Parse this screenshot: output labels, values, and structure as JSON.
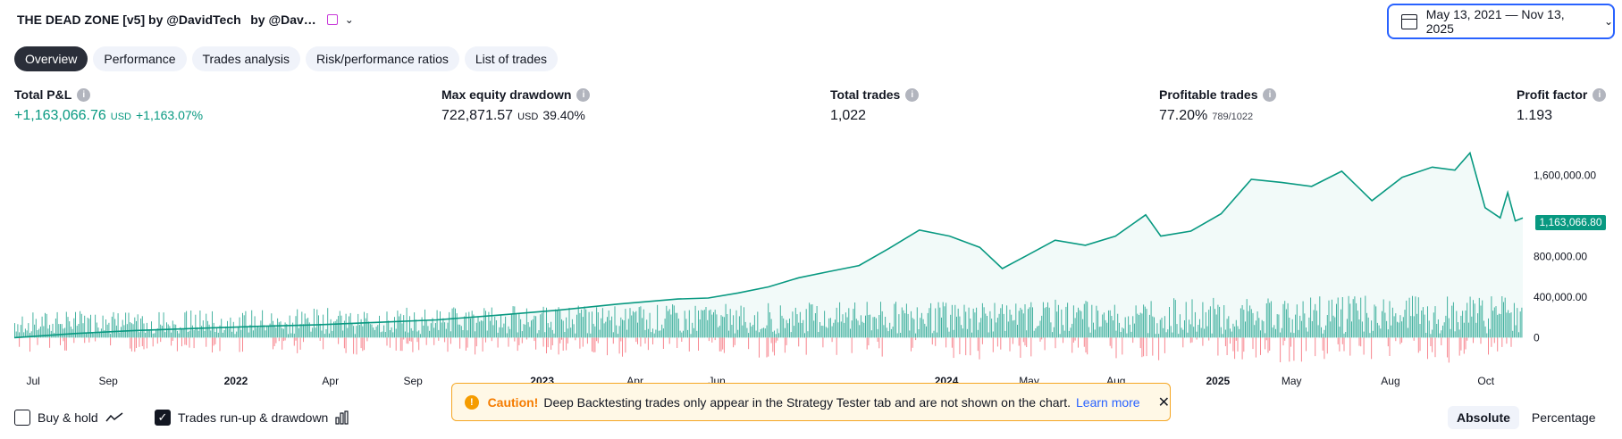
{
  "header": {
    "title": "THE DEAD ZONE [v5] by @DavidTech   by @Dav…",
    "date_range": "May 13, 2021 — Nov 13, 2025"
  },
  "tabs": [
    {
      "label": "Overview",
      "active": true
    },
    {
      "label": "Performance"
    },
    {
      "label": "Trades analysis"
    },
    {
      "label": "Risk/performance ratios"
    },
    {
      "label": "List of trades"
    }
  ],
  "metrics": {
    "total_pnl": {
      "label": "Total P&L",
      "value": "+1,163,066.76",
      "unit": "USD",
      "pct": "+1,163.07%"
    },
    "max_drawdown": {
      "label": "Max equity drawdown",
      "value": "722,871.57",
      "unit": "USD",
      "pct": "39.40%"
    },
    "total_trades": {
      "label": "Total trades",
      "value": "1,022"
    },
    "profitable_trades": {
      "label": "Profitable trades",
      "value": "77.20%",
      "sub": "789/1022"
    },
    "profit_factor": {
      "label": "Profit factor",
      "value": "1.193"
    }
  },
  "chart_data": {
    "type": "area",
    "y_ticks": [
      "1,600,000.00",
      "800,000.00",
      "400,000.00",
      "0"
    ],
    "y_tick_values": [
      1600000,
      800000,
      400000,
      0
    ],
    "current_value_label": "1,163,066.80",
    "x_ticks": [
      {
        "label": "Jul",
        "bold": false,
        "t": 0.008
      },
      {
        "label": "Sep",
        "bold": false,
        "t": 0.056
      },
      {
        "label": "2022",
        "bold": true,
        "t": 0.139
      },
      {
        "label": "Apr",
        "bold": false,
        "t": 0.204
      },
      {
        "label": "Sep",
        "bold": false,
        "t": 0.258
      },
      {
        "label": "2023",
        "bold": true,
        "t": 0.342
      },
      {
        "label": "Apr",
        "bold": false,
        "t": 0.406
      },
      {
        "label": "Jun",
        "bold": false,
        "t": 0.46
      },
      {
        "label": "2024",
        "bold": true,
        "t": 0.61
      },
      {
        "label": "May",
        "bold": false,
        "t": 0.666
      },
      {
        "label": "Aug",
        "bold": false,
        "t": 0.724
      },
      {
        "label": "2025",
        "bold": true,
        "t": 0.79
      },
      {
        "label": "May",
        "bold": false,
        "t": 0.84
      },
      {
        "label": "Aug",
        "bold": false,
        "t": 0.906
      },
      {
        "label": "Oct",
        "bold": false,
        "t": 0.97
      }
    ],
    "equity_series": [
      [
        0.0,
        0
      ],
      [
        0.04,
        40000
      ],
      [
        0.08,
        70000
      ],
      [
        0.12,
        90000
      ],
      [
        0.16,
        110000
      ],
      [
        0.2,
        125000
      ],
      [
        0.24,
        150000
      ],
      [
        0.28,
        175000
      ],
      [
        0.32,
        220000
      ],
      [
        0.36,
        270000
      ],
      [
        0.4,
        330000
      ],
      [
        0.44,
        380000
      ],
      [
        0.46,
        390000
      ],
      [
        0.48,
        440000
      ],
      [
        0.5,
        500000
      ],
      [
        0.52,
        590000
      ],
      [
        0.54,
        650000
      ],
      [
        0.56,
        710000
      ],
      [
        0.58,
        880000
      ],
      [
        0.6,
        1060000
      ],
      [
        0.62,
        1000000
      ],
      [
        0.64,
        890000
      ],
      [
        0.655,
        680000
      ],
      [
        0.67,
        800000
      ],
      [
        0.69,
        960000
      ],
      [
        0.71,
        910000
      ],
      [
        0.73,
        1000000
      ],
      [
        0.75,
        1210000
      ],
      [
        0.76,
        1000000
      ],
      [
        0.78,
        1050000
      ],
      [
        0.8,
        1220000
      ],
      [
        0.82,
        1560000
      ],
      [
        0.84,
        1530000
      ],
      [
        0.86,
        1490000
      ],
      [
        0.88,
        1640000
      ],
      [
        0.9,
        1350000
      ],
      [
        0.92,
        1580000
      ],
      [
        0.94,
        1680000
      ],
      [
        0.955,
        1650000
      ],
      [
        0.965,
        1820000
      ],
      [
        0.975,
        1280000
      ],
      [
        0.985,
        1180000
      ],
      [
        0.99,
        1430000
      ],
      [
        0.995,
        1150000
      ],
      [
        1.0,
        1180000
      ]
    ],
    "ylim": [
      -120000,
      1850000
    ],
    "grid": false,
    "legend": "none"
  },
  "colors": {
    "accent": "#089981",
    "drawdown": "#f23645",
    "active_tab": "#2a2e39",
    "focus": "#2962ff",
    "warning": "#f5a623"
  },
  "controls": {
    "buy_hold": {
      "label": "Buy & hold",
      "checked": false
    },
    "runup_drawdown": {
      "label": "Trades run-up & drawdown",
      "checked": true
    },
    "absolute": "Absolute",
    "percentage": "Percentage"
  },
  "caution": {
    "title": "Caution!",
    "text": "Deep Backtesting trades only appear in the Strategy Tester tab and are not shown on the chart.",
    "link": "Learn more"
  }
}
